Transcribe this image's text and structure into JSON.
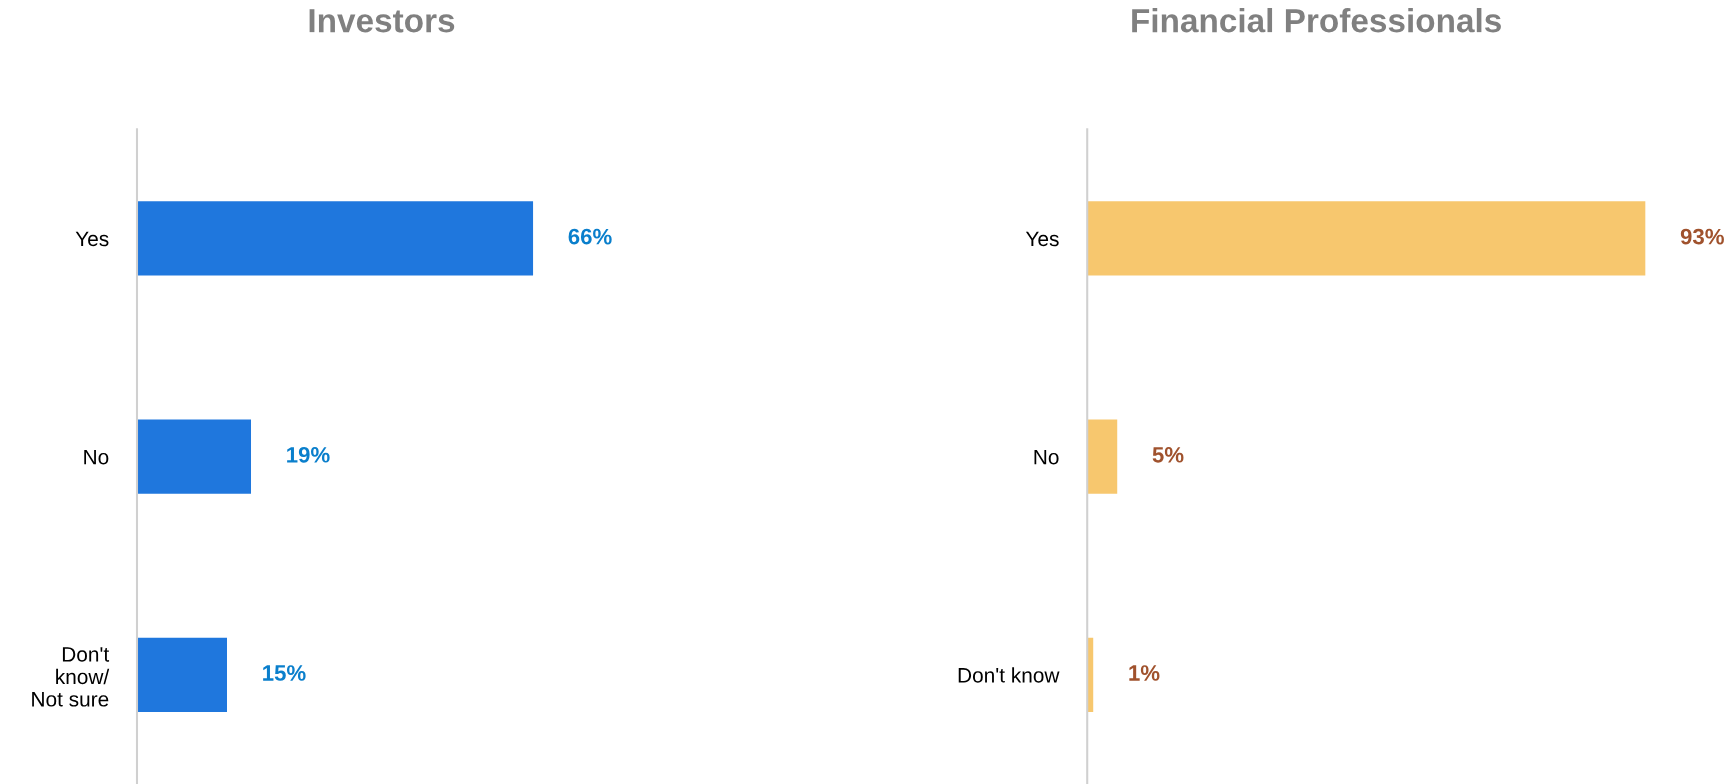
{
  "chart_data": [
    {
      "type": "bar",
      "orientation": "horizontal",
      "title": "Investors",
      "categories": [
        "Yes",
        "No",
        "Don't\nknow/\nNot sure"
      ],
      "values": [
        66,
        19,
        15
      ],
      "value_labels": [
        "66%",
        "19%",
        "15%"
      ],
      "color": "#1f77dd",
      "tick_labels": "y",
      "grid": false
    },
    {
      "type": "bar",
      "orientation": "horizontal",
      "title": "Financial Professionals",
      "categories": [
        "Yes",
        "No",
        "Don't know"
      ],
      "values": [
        93,
        5,
        1
      ],
      "value_labels": [
        "93%",
        "5%",
        "1%"
      ],
      "color": "#f7c76e",
      "tick_labels": "y",
      "grid": false
    }
  ]
}
